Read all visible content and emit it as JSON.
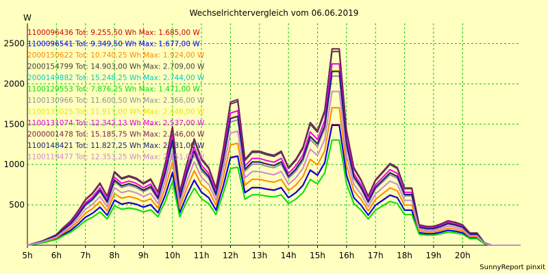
{
  "chart_data": {
    "type": "line",
    "title": "Wechselrichtervergleich vom 06.06.2019",
    "ylabel": "W",
    "credit": "SunnyReport pinxit",
    "ylim": [
      0,
      2750
    ],
    "yticks": [
      500,
      1000,
      1500,
      2000,
      2500
    ],
    "xlim": [
      5,
      22
    ],
    "xticks": [
      "5h",
      "6h",
      "7h",
      "8h",
      "9h",
      "10h",
      "11h",
      "12h",
      "13h",
      "14h",
      "15h",
      "16h",
      "17h",
      "18h",
      "19h",
      "20h"
    ],
    "grid": true,
    "legend_position": "top-left",
    "x": [
      5,
      5.5,
      6,
      6.25,
      6.5,
      6.75,
      7,
      7.25,
      7.5,
      7.75,
      8,
      8.25,
      8.5,
      8.75,
      9,
      9.25,
      9.5,
      9.75,
      10,
      10.25,
      10.5,
      10.75,
      11,
      11.25,
      11.5,
      11.75,
      12,
      12.25,
      12.5,
      12.75,
      13,
      13.25,
      13.5,
      13.75,
      14,
      14.25,
      14.5,
      14.75,
      15,
      15.25,
      15.5,
      15.75,
      16,
      16.25,
      16.5,
      16.75,
      17,
      17.25,
      17.5,
      17.75,
      18,
      18.25,
      18.5,
      18.75,
      19,
      19.25,
      19.5,
      19.75,
      20,
      20.25,
      20.5,
      20.75,
      21,
      21.5,
      22
    ],
    "series": [
      {
        "name": "1100096436 Tot: 9.255,50 Wh Max: 1.685,00 W",
        "color": "#cc0000",
        "scale": 0.622,
        "offset": 0
      },
      {
        "name": "1100096541 Tot: 9.349,50 Wh Max: 1.677,00 W",
        "color": "#0000ee",
        "scale": 0.619,
        "offset": 0
      },
      {
        "name": "2000150622 Tot: 10.740,25 Wh Max: 1.924,00 W",
        "color": "#ff8800",
        "scale": 0.71,
        "offset": 0
      },
      {
        "name": "2000154799 Tot: 14.903,00 Wh Max: 2.709,00 W",
        "color": "#404040",
        "scale": 1.0,
        "offset": 0
      },
      {
        "name": "2000149882 Tot: 15.248,25 Wh Max: 2.744,00 W",
        "color": "#00cccc",
        "scale": 1.013,
        "offset": 0
      },
      {
        "name": "1100129553 Tot: 7.876,25 Wh Max: 1.471,00 W",
        "color": "#00dd00",
        "scale": 0.543,
        "offset": 0
      },
      {
        "name": "1100130966 Tot: 11.600,50 Wh Max: 2.366,00 W",
        "color": "#909090",
        "scale": 0.873,
        "offset": 0
      },
      {
        "name": "1100131025 Tot: 11.911,00 Wh Max: 2.446,00 W",
        "color": "#e8e800",
        "scale": 0.903,
        "offset": 0
      },
      {
        "name": "1100131074 Tot: 12.342,13 Wh Max: 2.537,00 W",
        "color": "#ee00ee",
        "scale": 0.936,
        "offset": 0
      },
      {
        "name": "2000001478 Tot: 15.185,75 Wh Max: 2.746,00 W",
        "color": "#7a2050",
        "scale": 1.014,
        "offset": 0
      },
      {
        "name": "1100148421 Tot: 11.827,25 Wh Max: 2.431,00 W",
        "color": "#1a1a80",
        "scale": 0.897,
        "offset": 0
      },
      {
        "name": "1100119477 Tot: 12.353,25 Wh Max: 2.151,00 W",
        "color": "#cc88cc",
        "scale": 0.794,
        "offset": 0
      }
    ],
    "base_profile": [
      0,
      50,
      130,
      220,
      300,
      420,
      560,
      640,
      760,
      600,
      900,
      820,
      850,
      820,
      760,
      810,
      650,
      1000,
      1450,
      650,
      1000,
      1300,
      1060,
      950,
      700,
      1180,
      1750,
      1780,
      1050,
      1150,
      1150,
      1120,
      1100,
      1150,
      950,
      1050,
      1200,
      1500,
      1400,
      1650,
      2400,
      2400,
      1400,
      950,
      800,
      600,
      800,
      900,
      1000,
      950,
      700,
      700,
      250,
      230,
      230,
      260,
      300,
      280,
      250,
      150,
      150,
      30,
      0,
      0,
      0
    ]
  }
}
